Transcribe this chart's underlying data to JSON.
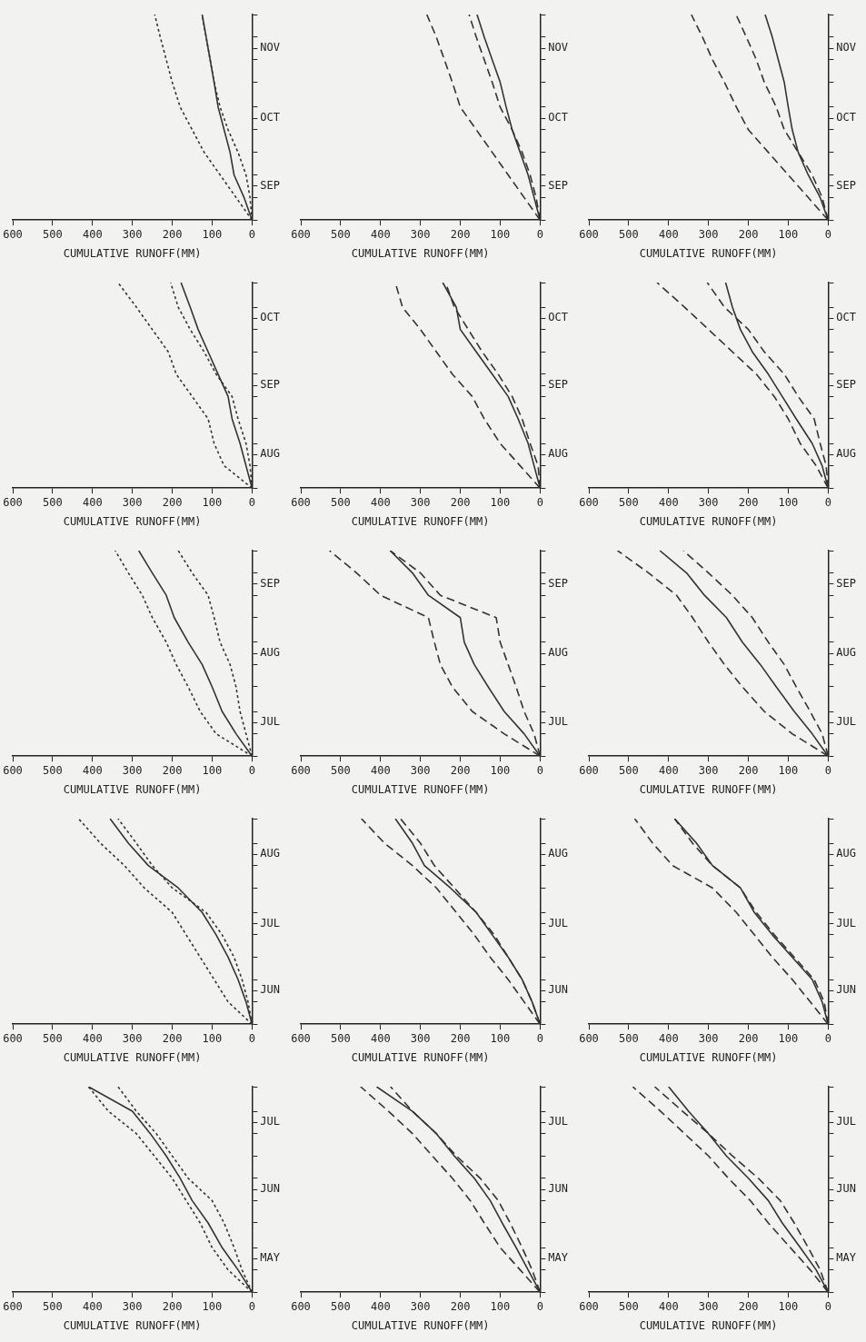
{
  "chart_data": [
    {
      "type": "line",
      "orientation": "horizontal",
      "xlabel": "CUMULATIVE RUNOFF(MM)",
      "xlim": [
        600,
        0
      ],
      "xticks": [
        600,
        500,
        400,
        300,
        200,
        100,
        0
      ],
      "x": [
        "--09-01",
        "--09-11",
        "--09-21",
        "--10-01",
        "--10-11",
        "--10-21",
        "--11-01",
        "--11-11",
        "--11-21",
        "--12-01"
      ],
      "ylim": [
        "--09-01",
        "--12-01"
      ],
      "yticks": [
        {
          "value": "--09-01",
          "label": null
        },
        {
          "value": "--09-11",
          "label": null
        },
        {
          "value": "--09-16",
          "label": "SEP"
        },
        {
          "value": "--09-21",
          "label": null
        },
        {
          "value": "--10-01",
          "label": null
        },
        {
          "value": "--10-11",
          "label": null
        },
        {
          "value": "--10-16",
          "label": "OCT"
        },
        {
          "value": "--10-21",
          "label": null
        },
        {
          "value": "--11-01",
          "label": null
        },
        {
          "value": "--11-11",
          "label": null
        },
        {
          "value": "--11-16",
          "label": "NOV"
        },
        {
          "value": "--11-21",
          "label": null
        },
        {
          "value": "--12-01",
          "label": null
        }
      ],
      "grid": false,
      "legend": false,
      "series": [
        {
          "color": "#333333",
          "line_style": "solid",
          "values": [
            0,
            20,
            45,
            55,
            70,
            85,
            95,
            105,
            115,
            125
          ]
        },
        {
          "color": "#333333",
          "line_style": "dotted",
          "values": [
            0,
            40,
            80,
            120,
            150,
            180,
            200,
            215,
            230,
            244
          ]
        },
        {
          "color": "#333333",
          "line_style": "dotted",
          "values": [
            0,
            5,
            15,
            35,
            60,
            80,
            95,
            105,
            115,
            125
          ]
        }
      ]
    },
    {
      "type": "line",
      "orientation": "horizontal",
      "xlabel": "CUMULATIVE RUNOFF(MM)",
      "xlim": [
        600,
        0
      ],
      "xticks": [
        600,
        500,
        400,
        300,
        200,
        100,
        0
      ],
      "x": [
        "--09-01",
        "--09-11",
        "--09-21",
        "--10-01",
        "--10-11",
        "--10-21",
        "--11-01",
        "--11-11",
        "--11-21",
        "--12-01"
      ],
      "ylim": [
        "--09-01",
        "--12-01"
      ],
      "yticks": [
        {
          "value": "--09-01",
          "label": null
        },
        {
          "value": "--09-11",
          "label": null
        },
        {
          "value": "--09-16",
          "label": "SEP"
        },
        {
          "value": "--09-21",
          "label": null
        },
        {
          "value": "--10-01",
          "label": null
        },
        {
          "value": "--10-11",
          "label": null
        },
        {
          "value": "--10-16",
          "label": "OCT"
        },
        {
          "value": "--10-21",
          "label": null
        },
        {
          "value": "--11-01",
          "label": null
        },
        {
          "value": "--11-11",
          "label": null
        },
        {
          "value": "--11-16",
          "label": "NOV"
        },
        {
          "value": "--11-21",
          "label": null
        },
        {
          "value": "--12-01",
          "label": null
        }
      ],
      "grid": false,
      "legend": false,
      "series": [
        {
          "color": "#333333",
          "line_style": "solid",
          "values": [
            0,
            15,
            30,
            50,
            70,
            85,
            100,
            120,
            140,
            158
          ]
        },
        {
          "color": "#333333",
          "line_style": "dashed",
          "values": [
            0,
            40,
            80,
            120,
            160,
            200,
            220,
            240,
            260,
            284
          ]
        },
        {
          "color": "#333333",
          "line_style": "dashed",
          "values": [
            0,
            10,
            25,
            45,
            70,
            100,
            120,
            140,
            160,
            178
          ]
        }
      ]
    },
    {
      "type": "line",
      "orientation": "horizontal",
      "xlabel": "CUMULATIVE RUNOFF(MM)",
      "xlim": [
        600,
        0
      ],
      "xticks": [
        600,
        500,
        400,
        300,
        200,
        100,
        0
      ],
      "x": [
        "--09-01",
        "--09-11",
        "--09-21",
        "--10-01",
        "--10-11",
        "--10-21",
        "--11-01",
        "--11-11",
        "--11-21",
        "--12-01"
      ],
      "ylim": [
        "--09-01",
        "--12-01"
      ],
      "yticks": [
        {
          "value": "--09-01",
          "label": null
        },
        {
          "value": "--09-11",
          "label": null
        },
        {
          "value": "--09-16",
          "label": "SEP"
        },
        {
          "value": "--09-21",
          "label": null
        },
        {
          "value": "--10-01",
          "label": null
        },
        {
          "value": "--10-11",
          "label": null
        },
        {
          "value": "--10-16",
          "label": "OCT"
        },
        {
          "value": "--10-21",
          "label": null
        },
        {
          "value": "--11-01",
          "label": null
        },
        {
          "value": "--11-11",
          "label": null
        },
        {
          "value": "--11-16",
          "label": "NOV"
        },
        {
          "value": "--11-21",
          "label": null
        },
        {
          "value": "--12-01",
          "label": null
        }
      ],
      "grid": false,
      "legend": false,
      "series": [
        {
          "color": "#333333",
          "line_style": "solid",
          "values": [
            0,
            20,
            50,
            75,
            90,
            100,
            110,
            125,
            140,
            158
          ]
        },
        {
          "color": "#333333",
          "line_style": "dashed",
          "values": [
            0,
            50,
            100,
            150,
            200,
            230,
            260,
            290,
            315,
            343
          ]
        },
        {
          "color": "#333333",
          "line_style": "dashed",
          "values": [
            0,
            15,
            40,
            75,
            110,
            130,
            160,
            180,
            205,
            231
          ]
        }
      ]
    },
    {
      "type": "line",
      "orientation": "horizontal",
      "xlabel": "CUMULATIVE RUNOFF(MM)",
      "xlim": [
        600,
        0
      ],
      "xticks": [
        600,
        500,
        400,
        300,
        200,
        100,
        0
      ],
      "x": [
        "--08-01",
        "--08-11",
        "--08-21",
        "--09-01",
        "--09-11",
        "--09-21",
        "--10-01",
        "--10-11",
        "--10-21",
        "--11-01"
      ],
      "ylim": [
        "--08-01",
        "--11-01"
      ],
      "yticks": [
        {
          "value": "--08-01",
          "label": null
        },
        {
          "value": "--08-11",
          "label": null
        },
        {
          "value": "--08-16",
          "label": "AUG"
        },
        {
          "value": "--08-21",
          "label": null
        },
        {
          "value": "--09-01",
          "label": null
        },
        {
          "value": "--09-11",
          "label": null
        },
        {
          "value": "--09-16",
          "label": "SEP"
        },
        {
          "value": "--09-21",
          "label": null
        },
        {
          "value": "--10-01",
          "label": null
        },
        {
          "value": "--10-11",
          "label": null
        },
        {
          "value": "--10-16",
          "label": "OCT"
        },
        {
          "value": "--10-21",
          "label": null
        },
        {
          "value": "--11-01",
          "label": null
        }
      ],
      "grid": false,
      "legend": false,
      "series": [
        {
          "color": "#333333",
          "line_style": "solid",
          "values": [
            0,
            15,
            30,
            50,
            60,
            85,
            110,
            135,
            155,
            178
          ]
        },
        {
          "color": "#333333",
          "line_style": "dotted",
          "values": [
            0,
            70,
            95,
            110,
            150,
            190,
            210,
            250,
            290,
            336
          ]
        },
        {
          "color": "#333333",
          "line_style": "dotted",
          "values": [
            0,
            5,
            15,
            35,
            50,
            90,
            120,
            155,
            185,
            204
          ]
        }
      ]
    },
    {
      "type": "line",
      "orientation": "horizontal",
      "xlabel": "CUMULATIVE RUNOFF(MM)",
      "xlim": [
        600,
        0
      ],
      "xticks": [
        600,
        500,
        400,
        300,
        200,
        100,
        0
      ],
      "x": [
        "--08-01",
        "--08-11",
        "--08-21",
        "--09-01",
        "--09-11",
        "--09-21",
        "--10-01",
        "--10-11",
        "--10-21",
        "--11-01"
      ],
      "ylim": [
        "--08-01",
        "--11-01"
      ],
      "yticks": [
        {
          "value": "--08-01",
          "label": null
        },
        {
          "value": "--08-11",
          "label": null
        },
        {
          "value": "--08-16",
          "label": "AUG"
        },
        {
          "value": "--08-21",
          "label": null
        },
        {
          "value": "--09-01",
          "label": null
        },
        {
          "value": "--09-11",
          "label": null
        },
        {
          "value": "--09-16",
          "label": "SEP"
        },
        {
          "value": "--09-21",
          "label": null
        },
        {
          "value": "--10-01",
          "label": null
        },
        {
          "value": "--10-11",
          "label": null
        },
        {
          "value": "--10-16",
          "label": "OCT"
        },
        {
          "value": "--10-21",
          "label": null
        },
        {
          "value": "--11-01",
          "label": null
        }
      ],
      "grid": false,
      "legend": false,
      "series": [
        {
          "color": "#333333",
          "line_style": "solid",
          "values": [
            0,
            15,
            30,
            55,
            80,
            120,
            160,
            200,
            210,
            244
          ]
        },
        {
          "color": "#333333",
          "line_style": "dashed",
          "values": [
            0,
            50,
            100,
            140,
            170,
            220,
            260,
            300,
            345,
            363
          ]
        },
        {
          "color": "#333333",
          "line_style": "dashed",
          "values": [
            0,
            5,
            25,
            45,
            70,
            105,
            145,
            180,
            215,
            237
          ]
        }
      ]
    },
    {
      "type": "line",
      "orientation": "horizontal",
      "xlabel": "CUMULATIVE RUNOFF(MM)",
      "xlim": [
        600,
        0
      ],
      "xticks": [
        600,
        500,
        400,
        300,
        200,
        100,
        0
      ],
      "x": [
        "--08-01",
        "--08-11",
        "--08-21",
        "--09-01",
        "--09-11",
        "--09-21",
        "--10-01",
        "--10-11",
        "--10-21",
        "--11-01"
      ],
      "ylim": [
        "--08-01",
        "--11-01"
      ],
      "yticks": [
        {
          "value": "--08-01",
          "label": null
        },
        {
          "value": "--08-11",
          "label": null
        },
        {
          "value": "--08-16",
          "label": "AUG"
        },
        {
          "value": "--08-21",
          "label": null
        },
        {
          "value": "--09-01",
          "label": null
        },
        {
          "value": "--09-11",
          "label": null
        },
        {
          "value": "--09-16",
          "label": "SEP"
        },
        {
          "value": "--09-21",
          "label": null
        },
        {
          "value": "--10-01",
          "label": null
        },
        {
          "value": "--10-11",
          "label": null
        },
        {
          "value": "--10-16",
          "label": "OCT"
        },
        {
          "value": "--10-21",
          "label": null
        },
        {
          "value": "--11-01",
          "label": null
        }
      ],
      "grid": false,
      "legend": false,
      "series": [
        {
          "color": "#333333",
          "line_style": "solid",
          "values": [
            0,
            15,
            40,
            80,
            115,
            150,
            190,
            220,
            240,
            257
          ]
        },
        {
          "color": "#333333",
          "line_style": "dashed",
          "values": [
            0,
            30,
            70,
            100,
            135,
            180,
            240,
            300,
            360,
            429
          ]
        },
        {
          "color": "#333333",
          "line_style": "dashed",
          "values": [
            0,
            5,
            20,
            35,
            75,
            110,
            160,
            200,
            260,
            303
          ]
        }
      ]
    },
    {
      "type": "line",
      "orientation": "horizontal",
      "xlabel": "CUMULATIVE RUNOFF(MM)",
      "xlim": [
        600,
        0
      ],
      "xticks": [
        600,
        500,
        400,
        300,
        200,
        100,
        0
      ],
      "x": [
        "--07-01",
        "--07-11",
        "--07-21",
        "--08-01",
        "--08-11",
        "--08-21",
        "--09-01",
        "--09-11",
        "--09-21",
        "--10-01"
      ],
      "ylim": [
        "--07-01",
        "--10-01"
      ],
      "yticks": [
        {
          "value": "--07-01",
          "label": null
        },
        {
          "value": "--07-11",
          "label": null
        },
        {
          "value": "--07-16",
          "label": "JUL"
        },
        {
          "value": "--07-21",
          "label": null
        },
        {
          "value": "--08-01",
          "label": null
        },
        {
          "value": "--08-11",
          "label": null
        },
        {
          "value": "--08-16",
          "label": "AUG"
        },
        {
          "value": "--08-21",
          "label": null
        },
        {
          "value": "--09-01",
          "label": null
        },
        {
          "value": "--09-11",
          "label": null
        },
        {
          "value": "--09-16",
          "label": "SEP"
        },
        {
          "value": "--09-21",
          "label": null
        },
        {
          "value": "--10-01",
          "label": null
        }
      ],
      "grid": false,
      "legend": false,
      "series": [
        {
          "color": "#333333",
          "line_style": "solid",
          "values": [
            0,
            40,
            75,
            100,
            125,
            160,
            195,
            215,
            250,
            284
          ]
        },
        {
          "color": "#333333",
          "line_style": "dotted",
          "values": [
            0,
            90,
            130,
            160,
            190,
            215,
            250,
            275,
            310,
            343
          ]
        },
        {
          "color": "#333333",
          "line_style": "dotted",
          "values": [
            0,
            15,
            30,
            40,
            55,
            80,
            95,
            110,
            150,
            185
          ]
        }
      ]
    },
    {
      "type": "line",
      "orientation": "horizontal",
      "xlabel": "CUMULATIVE RUNOFF(MM)",
      "xlim": [
        600,
        0
      ],
      "xticks": [
        600,
        500,
        400,
        300,
        200,
        100,
        0
      ],
      "x": [
        "--07-01",
        "--07-11",
        "--07-21",
        "--08-01",
        "--08-11",
        "--08-21",
        "--09-01",
        "--09-11",
        "--09-21",
        "--10-01"
      ],
      "ylim": [
        "--07-01",
        "--10-01"
      ],
      "yticks": [
        {
          "value": "--07-01",
          "label": null
        },
        {
          "value": "--07-11",
          "label": null
        },
        {
          "value": "--07-16",
          "label": "JUL"
        },
        {
          "value": "--07-21",
          "label": null
        },
        {
          "value": "--08-01",
          "label": null
        },
        {
          "value": "--08-11",
          "label": null
        },
        {
          "value": "--08-16",
          "label": "AUG"
        },
        {
          "value": "--08-21",
          "label": null
        },
        {
          "value": "--09-01",
          "label": null
        },
        {
          "value": "--09-11",
          "label": null
        },
        {
          "value": "--09-16",
          "label": "SEP"
        },
        {
          "value": "--09-21",
          "label": null
        },
        {
          "value": "--10-01",
          "label": null
        }
      ],
      "grid": false,
      "legend": false,
      "series": [
        {
          "color": "#333333",
          "line_style": "solid",
          "values": [
            0,
            40,
            90,
            130,
            165,
            190,
            200,
            280,
            320,
            376
          ]
        },
        {
          "color": "#333333",
          "line_style": "dashed",
          "values": [
            0,
            90,
            170,
            220,
            250,
            265,
            280,
            400,
            460,
            528
          ]
        },
        {
          "color": "#333333",
          "line_style": "dashed",
          "values": [
            0,
            15,
            40,
            60,
            80,
            100,
            110,
            250,
            300,
            376
          ]
        }
      ]
    },
    {
      "type": "line",
      "orientation": "horizontal",
      "xlabel": "CUMULATIVE RUNOFF(MM)",
      "xlim": [
        600,
        0
      ],
      "xticks": [
        600,
        500,
        400,
        300,
        200,
        100,
        0
      ],
      "x": [
        "--07-01",
        "--07-11",
        "--07-21",
        "--08-01",
        "--08-11",
        "--08-21",
        "--09-01",
        "--09-11",
        "--09-21",
        "--10-01"
      ],
      "ylim": [
        "--07-01",
        "--10-01"
      ],
      "yticks": [
        {
          "value": "--07-01",
          "label": null
        },
        {
          "value": "--07-11",
          "label": null
        },
        {
          "value": "--07-16",
          "label": "JUL"
        },
        {
          "value": "--07-21",
          "label": null
        },
        {
          "value": "--08-01",
          "label": null
        },
        {
          "value": "--08-11",
          "label": null
        },
        {
          "value": "--08-16",
          "label": "AUG"
        },
        {
          "value": "--08-21",
          "label": null
        },
        {
          "value": "--09-01",
          "label": null
        },
        {
          "value": "--09-11",
          "label": null
        },
        {
          "value": "--09-16",
          "label": "SEP"
        },
        {
          "value": "--09-21",
          "label": null
        },
        {
          "value": "--10-01",
          "label": null
        }
      ],
      "grid": false,
      "legend": false,
      "series": [
        {
          "color": "#333333",
          "line_style": "solid",
          "values": [
            0,
            40,
            85,
            130,
            170,
            215,
            255,
            310,
            355,
            422
          ]
        },
        {
          "color": "#333333",
          "line_style": "dashed",
          "values": [
            0,
            90,
            160,
            215,
            260,
            300,
            340,
            380,
            450,
            528
          ]
        },
        {
          "color": "#333333",
          "line_style": "dashed",
          "values": [
            0,
            15,
            45,
            80,
            110,
            150,
            190,
            240,
            300,
            363
          ]
        }
      ]
    },
    {
      "type": "line",
      "orientation": "horizontal",
      "xlabel": "CUMULATIVE RUNOFF(MM)",
      "xlim": [
        600,
        0
      ],
      "xticks": [
        600,
        500,
        400,
        300,
        200,
        100,
        0
      ],
      "x": [
        "--06-01",
        "--06-11",
        "--06-21",
        "--07-01",
        "--07-11",
        "--07-21",
        "--08-01",
        "--08-11",
        "--08-21",
        "--09-01"
      ],
      "ylim": [
        "--06-01",
        "--09-01"
      ],
      "yticks": [
        {
          "value": "--06-01",
          "label": null
        },
        {
          "value": "--06-11",
          "label": null
        },
        {
          "value": "--06-16",
          "label": "JUN"
        },
        {
          "value": "--06-21",
          "label": null
        },
        {
          "value": "--07-01",
          "label": null
        },
        {
          "value": "--07-11",
          "label": null
        },
        {
          "value": "--07-16",
          "label": "JUL"
        },
        {
          "value": "--07-21",
          "label": null
        },
        {
          "value": "--08-01",
          "label": null
        },
        {
          "value": "--08-11",
          "label": null
        },
        {
          "value": "--08-16",
          "label": "AUG"
        },
        {
          "value": "--08-21",
          "label": null
        },
        {
          "value": "--09-01",
          "label": null
        }
      ],
      "grid": false,
      "legend": false,
      "series": [
        {
          "color": "#333333",
          "line_style": "solid",
          "values": [
            0,
            15,
            35,
            60,
            90,
            125,
            185,
            260,
            310,
            356
          ]
        },
        {
          "color": "#333333",
          "line_style": "dotted",
          "values": [
            0,
            60,
            95,
            130,
            165,
            200,
            270,
            320,
            380,
            435
          ]
        },
        {
          "color": "#333333",
          "line_style": "dotted",
          "values": [
            0,
            10,
            25,
            45,
            75,
            115,
            200,
            250,
            290,
            336
          ]
        }
      ]
    },
    {
      "type": "line",
      "orientation": "horizontal",
      "xlabel": "CUMULATIVE RUNOFF(MM)",
      "xlim": [
        600,
        0
      ],
      "xticks": [
        600,
        500,
        400,
        300,
        200,
        100,
        0
      ],
      "x": [
        "--06-01",
        "--06-11",
        "--06-21",
        "--07-01",
        "--07-11",
        "--07-21",
        "--08-01",
        "--08-11",
        "--08-21",
        "--09-01"
      ],
      "ylim": [
        "--06-01",
        "--09-01"
      ],
      "yticks": [
        {
          "value": "--06-01",
          "label": null
        },
        {
          "value": "--06-11",
          "label": null
        },
        {
          "value": "--06-16",
          "label": "JUN"
        },
        {
          "value": "--06-21",
          "label": null
        },
        {
          "value": "--07-01",
          "label": null
        },
        {
          "value": "--07-11",
          "label": null
        },
        {
          "value": "--07-16",
          "label": "JUL"
        },
        {
          "value": "--07-21",
          "label": null
        },
        {
          "value": "--08-01",
          "label": null
        },
        {
          "value": "--08-11",
          "label": null
        },
        {
          "value": "--08-16",
          "label": "AUG"
        },
        {
          "value": "--08-21",
          "label": null
        },
        {
          "value": "--09-01",
          "label": null
        }
      ],
      "grid": false,
      "legend": false,
      "series": [
        {
          "color": "#333333",
          "line_style": "solid",
          "values": [
            0,
            20,
            45,
            80,
            120,
            160,
            225,
            290,
            320,
            363
          ]
        },
        {
          "color": "#333333",
          "line_style": "dashed",
          "values": [
            0,
            40,
            80,
            125,
            165,
            210,
            260,
            320,
            390,
            448
          ]
        },
        {
          "color": "#333333",
          "line_style": "dashed",
          "values": [
            0,
            20,
            45,
            80,
            115,
            160,
            215,
            265,
            300,
            350
          ]
        }
      ]
    },
    {
      "type": "line",
      "orientation": "horizontal",
      "xlabel": "CUMULATIVE RUNOFF(MM)",
      "xlim": [
        600,
        0
      ],
      "xticks": [
        600,
        500,
        400,
        300,
        200,
        100,
        0
      ],
      "x": [
        "--06-01",
        "--06-11",
        "--06-21",
        "--07-01",
        "--07-11",
        "--07-21",
        "--08-01",
        "--08-11",
        "--08-21",
        "--09-01"
      ],
      "ylim": [
        "--06-01",
        "--09-01"
      ],
      "yticks": [
        {
          "value": "--06-01",
          "label": null
        },
        {
          "value": "--06-11",
          "label": null
        },
        {
          "value": "--06-16",
          "label": "JUN"
        },
        {
          "value": "--06-21",
          "label": null
        },
        {
          "value": "--07-01",
          "label": null
        },
        {
          "value": "--07-11",
          "label": null
        },
        {
          "value": "--07-16",
          "label": "JUL"
        },
        {
          "value": "--07-21",
          "label": null
        },
        {
          "value": "--08-01",
          "label": null
        },
        {
          "value": "--08-11",
          "label": null
        },
        {
          "value": "--08-16",
          "label": "AUG"
        },
        {
          "value": "--08-21",
          "label": null
        },
        {
          "value": "--09-01",
          "label": null
        }
      ],
      "grid": false,
      "legend": false,
      "series": [
        {
          "color": "#333333",
          "line_style": "solid",
          "values": [
            0,
            15,
            40,
            90,
            140,
            185,
            220,
            290,
            330,
            385
          ]
        },
        {
          "color": "#333333",
          "line_style": "dashed",
          "values": [
            0,
            45,
            90,
            140,
            185,
            230,
            290,
            390,
            440,
            485
          ]
        },
        {
          "color": "#333333",
          "line_style": "dashed",
          "values": [
            0,
            10,
            35,
            85,
            135,
            180,
            220,
            290,
            340,
            385
          ]
        }
      ]
    },
    {
      "type": "line",
      "orientation": "horizontal",
      "xlabel": "CUMULATIVE RUNOFF(MM)",
      "xlim": [
        600,
        0
      ],
      "xticks": [
        600,
        500,
        400,
        300,
        200,
        100,
        0
      ],
      "x": [
        "--05-01",
        "--05-11",
        "--05-21",
        "--06-01",
        "--06-11",
        "--06-21",
        "--07-01",
        "--07-11",
        "--07-21",
        "--08-01"
      ],
      "ylim": [
        "--05-01",
        "--08-01"
      ],
      "yticks": [
        {
          "value": "--05-01",
          "label": null
        },
        {
          "value": "--05-11",
          "label": null
        },
        {
          "value": "--05-16",
          "label": "MAY"
        },
        {
          "value": "--05-21",
          "label": null
        },
        {
          "value": "--06-01",
          "label": null
        },
        {
          "value": "--06-11",
          "label": null
        },
        {
          "value": "--06-16",
          "label": "JUN"
        },
        {
          "value": "--06-21",
          "label": null
        },
        {
          "value": "--07-01",
          "label": null
        },
        {
          "value": "--07-11",
          "label": null
        },
        {
          "value": "--07-16",
          "label": "JUL"
        },
        {
          "value": "--07-21",
          "label": null
        },
        {
          "value": "--08-01",
          "label": null
        }
      ],
      "grid": false,
      "legend": false,
      "series": [
        {
          "color": "#333333",
          "line_style": "solid",
          "values": [
            0,
            35,
            75,
            110,
            150,
            180,
            215,
            255,
            300,
            410
          ]
        },
        {
          "color": "#333333",
          "line_style": "dotted",
          "values": [
            0,
            60,
            100,
            130,
            165,
            200,
            245,
            290,
            360,
            410
          ]
        },
        {
          "color": "#333333",
          "line_style": "dotted",
          "values": [
            0,
            25,
            45,
            70,
            100,
            160,
            200,
            240,
            290,
            336
          ]
        }
      ]
    },
    {
      "type": "line",
      "orientation": "horizontal",
      "xlabel": "CUMULATIVE RUNOFF(MM)",
      "xlim": [
        600,
        0
      ],
      "xticks": [
        600,
        500,
        400,
        300,
        200,
        100,
        0
      ],
      "x": [
        "--05-01",
        "--05-11",
        "--05-21",
        "--06-01",
        "--06-11",
        "--06-21",
        "--07-01",
        "--07-11",
        "--07-21",
        "--08-01"
      ],
      "ylim": [
        "--05-01",
        "--08-01"
      ],
      "yticks": [
        {
          "value": "--05-01",
          "label": null
        },
        {
          "value": "--05-11",
          "label": null
        },
        {
          "value": "--05-16",
          "label": "MAY"
        },
        {
          "value": "--05-21",
          "label": null
        },
        {
          "value": "--06-01",
          "label": null
        },
        {
          "value": "--06-11",
          "label": null
        },
        {
          "value": "--06-16",
          "label": "JUN"
        },
        {
          "value": "--06-21",
          "label": null
        },
        {
          "value": "--07-01",
          "label": null
        },
        {
          "value": "--07-11",
          "label": null
        },
        {
          "value": "--07-16",
          "label": "JUL"
        },
        {
          "value": "--07-21",
          "label": null
        },
        {
          "value": "--08-01",
          "label": null
        }
      ],
      "grid": false,
      "legend": false,
      "series": [
        {
          "color": "#333333",
          "line_style": "solid",
          "values": [
            0,
            30,
            60,
            95,
            125,
            165,
            215,
            260,
            320,
            410
          ]
        },
        {
          "color": "#333333",
          "line_style": "dashed",
          "values": [
            0,
            50,
            100,
            140,
            175,
            220,
            270,
            320,
            380,
            450
          ]
        },
        {
          "color": "#333333",
          "line_style": "dashed",
          "values": [
            0,
            20,
            45,
            75,
            105,
            150,
            210,
            260,
            320,
            375
          ]
        }
      ]
    },
    {
      "type": "line",
      "orientation": "horizontal",
      "xlabel": "CUMULATIVE RUNOFF(MM)",
      "xlim": [
        600,
        0
      ],
      "xticks": [
        600,
        500,
        400,
        300,
        200,
        100,
        0
      ],
      "x": [
        "--05-01",
        "--05-11",
        "--05-21",
        "--06-01",
        "--06-11",
        "--06-21",
        "--07-01",
        "--07-11",
        "--07-21",
        "--08-01"
      ],
      "ylim": [
        "--05-01",
        "--08-01"
      ],
      "yticks": [
        {
          "value": "--05-01",
          "label": null
        },
        {
          "value": "--05-11",
          "label": null
        },
        {
          "value": "--05-16",
          "label": "MAY"
        },
        {
          "value": "--05-21",
          "label": null
        },
        {
          "value": "--06-01",
          "label": null
        },
        {
          "value": "--06-11",
          "label": null
        },
        {
          "value": "--06-16",
          "label": "JUN"
        },
        {
          "value": "--06-21",
          "label": null
        },
        {
          "value": "--07-01",
          "label": null
        },
        {
          "value": "--07-11",
          "label": null
        },
        {
          "value": "--07-16",
          "label": "JUL"
        },
        {
          "value": "--07-21",
          "label": null
        },
        {
          "value": "--08-01",
          "label": null
        }
      ],
      "grid": false,
      "legend": false,
      "series": [
        {
          "color": "#333333",
          "line_style": "solid",
          "values": [
            0,
            30,
            70,
            115,
            150,
            200,
            255,
            300,
            350,
            400
          ]
        },
        {
          "color": "#333333",
          "line_style": "dashed",
          "values": [
            0,
            45,
            95,
            150,
            195,
            250,
            300,
            360,
            420,
            490
          ]
        },
        {
          "color": "#333333",
          "line_style": "dashed",
          "values": [
            0,
            20,
            50,
            85,
            120,
            175,
            240,
            300,
            365,
            435
          ]
        }
      ]
    }
  ]
}
